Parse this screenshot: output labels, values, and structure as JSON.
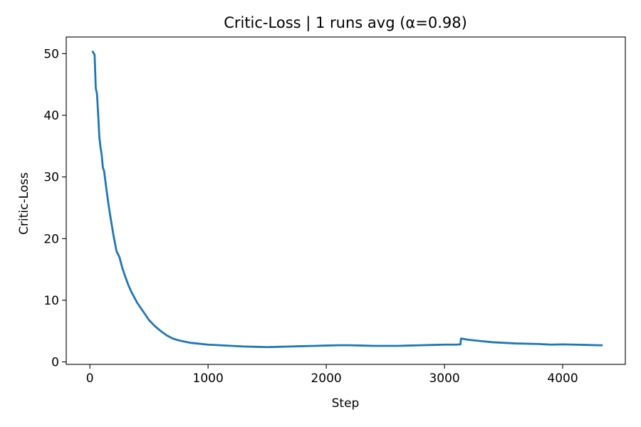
{
  "chart_data": {
    "type": "line",
    "title": "Critic-Loss | 1 runs avg  (α=0.98)",
    "xlabel": "Step",
    "ylabel": "Critic-Loss",
    "xlim": [
      -200,
      4530
    ],
    "ylim": [
      -0.4,
      52.7
    ],
    "xticks": [
      0,
      1000,
      2000,
      3000,
      4000
    ],
    "yticks": [
      0,
      10,
      20,
      30,
      40,
      50
    ],
    "grid": false,
    "legend": "none",
    "line_color": "#1f77b4",
    "series": [
      {
        "x": [
          25,
          40,
          50,
          60,
          70,
          80,
          90,
          100,
          110,
          120,
          140,
          160,
          180,
          200,
          225,
          250,
          275,
          300,
          325,
          350,
          375,
          400,
          450,
          500,
          550,
          600,
          650,
          700,
          750,
          800,
          850,
          900,
          1000,
          1100,
          1200,
          1300,
          1400,
          1500,
          1600,
          1700,
          1800,
          1900,
          2000,
          2100,
          2200,
          2300,
          2400,
          2500,
          2600,
          2700,
          2800,
          2900,
          3000,
          3100,
          3135,
          3140,
          3200,
          3300,
          3400,
          3500,
          3600,
          3700,
          3800,
          3900,
          4000,
          4100,
          4200,
          4300,
          4330
        ],
        "y": [
          50.3,
          49.8,
          44.4,
          43.5,
          40.2,
          36.5,
          34.8,
          33.6,
          31.5,
          31.0,
          28.0,
          25.2,
          22.8,
          20.5,
          18.0,
          17.0,
          15.2,
          13.8,
          12.5,
          11.4,
          10.5,
          9.6,
          8.2,
          6.8,
          5.8,
          5.0,
          4.3,
          3.8,
          3.5,
          3.3,
          3.1,
          3.0,
          2.8,
          2.7,
          2.6,
          2.5,
          2.45,
          2.4,
          2.45,
          2.5,
          2.55,
          2.6,
          2.65,
          2.7,
          2.7,
          2.65,
          2.6,
          2.6,
          2.6,
          2.65,
          2.7,
          2.75,
          2.8,
          2.8,
          2.85,
          3.8,
          3.6,
          3.4,
          3.2,
          3.1,
          3.0,
          2.95,
          2.9,
          2.8,
          2.85,
          2.8,
          2.75,
          2.7,
          2.7
        ]
      }
    ]
  }
}
